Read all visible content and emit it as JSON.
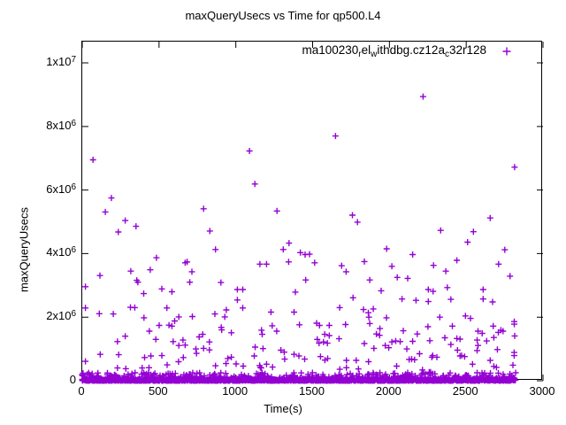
{
  "title": "maxQueryUsecs vs Time for qp500.L4",
  "legend": {
    "marker_glyph": "+",
    "parts": [
      {
        "text": "ma100230",
        "sub": false
      },
      {
        "text": "r",
        "sub": true
      },
      {
        "text": "el",
        "sub": false
      },
      {
        "text": "w",
        "sub": true
      },
      {
        "text": "ithdbg.cz12a",
        "sub": false
      },
      {
        "text": "c",
        "sub": true
      },
      {
        "text": "32r128",
        "sub": false
      }
    ]
  },
  "axes": {
    "x": {
      "label": "Time(s)",
      "ticks": [
        {
          "v": 0,
          "label": "0"
        },
        {
          "v": 500,
          "label": "500"
        },
        {
          "v": 1000,
          "label": "1000"
        },
        {
          "v": 1500,
          "label": "1500"
        },
        {
          "v": 2000,
          "label": "2000"
        },
        {
          "v": 2500,
          "label": "2500"
        },
        {
          "v": 3000,
          "label": "3000"
        }
      ]
    },
    "y": {
      "label": "maxQueryUsecs",
      "ticks": [
        {
          "v": 0,
          "base": "0",
          "exp": ""
        },
        {
          "v": 2000000,
          "base": "2x10",
          "exp": "6"
        },
        {
          "v": 4000000,
          "base": "4x10",
          "exp": "6"
        },
        {
          "v": 6000000,
          "base": "6x10",
          "exp": "6"
        },
        {
          "v": 8000000,
          "base": "8x10",
          "exp": "6"
        },
        {
          "v": 10000000,
          "base": "1x10",
          "exp": "7"
        }
      ]
    }
  },
  "chart_data": {
    "type": "scatter",
    "title": "maxQueryUsecs vs Time for qp500.L4",
    "xlabel": "Time(s)",
    "ylabel": "maxQueryUsecs",
    "xlim": [
      0,
      3000
    ],
    "ylim": [
      0,
      10670000
    ],
    "grid": false,
    "legend_position": "top-right-inside",
    "marker": {
      "shape": "plus",
      "color": "#9400D3",
      "size": 7,
      "stroke_width": 1.4
    },
    "series": [
      {
        "name": "ma100230_rel_withdbg.cz12a_c32r128",
        "points": [
          [
            70,
            6950000
          ],
          [
            190,
            5750000
          ],
          [
            1089,
            7230000
          ],
          [
            1124,
            6190000
          ],
          [
            1649,
            7700000
          ],
          [
            2219,
            8940000
          ],
          [
            2815,
            6720000
          ],
          [
            150,
            5310000
          ],
          [
            280,
            5040000
          ],
          [
            235,
            4680000
          ],
          [
            350,
            4860000
          ],
          [
            483,
            3870000
          ],
          [
            670,
            3710000
          ],
          [
            115,
            3310000
          ],
          [
            316,
            3450000
          ],
          [
            443,
            3490000
          ],
          [
            355,
            3160000
          ],
          [
            362,
            3100000
          ],
          [
            21,
            2960000
          ],
          [
            400,
            2740000
          ],
          [
            518,
            2890000
          ],
          [
            584,
            2800000
          ],
          [
            683,
            3740000
          ],
          [
            714,
            3430000
          ],
          [
            700,
            3100000
          ],
          [
            21,
            2290000
          ],
          [
            111,
            2110000
          ],
          [
            202,
            2100000
          ],
          [
            314,
            2310000
          ],
          [
            342,
            2300000
          ],
          [
            402,
            1980000
          ],
          [
            551,
            2290000
          ],
          [
            629,
            2010000
          ],
          [
            717,
            2020000
          ],
          [
            602,
            1880000
          ],
          [
            565,
            1750000
          ],
          [
            584,
            1720000
          ],
          [
            501,
            1740000
          ],
          [
            437,
            1560000
          ],
          [
            479,
            1300000
          ],
          [
            229,
            1230000
          ],
          [
            280,
            1400000
          ],
          [
            592,
            1230000
          ],
          [
            656,
            1280000
          ],
          [
            670,
            1120000
          ],
          [
            629,
            1110000
          ],
          [
            117,
            830000
          ],
          [
            237,
            820000
          ],
          [
            406,
            730000
          ],
          [
            447,
            780000
          ],
          [
            518,
            790000
          ],
          [
            553,
            500000
          ],
          [
            627,
            600000
          ],
          [
            658,
            730000
          ],
          [
            740,
            1000000
          ],
          [
            744,
            860000
          ],
          [
            229,
            400000
          ],
          [
            284,
            380000
          ],
          [
            344,
            250000
          ],
          [
            390,
            400000
          ],
          [
            435,
            410000
          ],
          [
            21,
            610000
          ],
          [
            464,
            190000
          ],
          [
            571,
            220000
          ],
          [
            790,
            5410000
          ],
          [
            1268,
            5340000
          ],
          [
            831,
            4710000
          ],
          [
            868,
            4130000
          ],
          [
            1346,
            4330000
          ],
          [
            1309,
            4130000
          ],
          [
            1344,
            3740000
          ],
          [
            1420,
            4030000
          ],
          [
            1451,
            3970000
          ],
          [
            1480,
            3980000
          ],
          [
            1513,
            3710000
          ],
          [
            1157,
            3670000
          ],
          [
            1200,
            3670000
          ],
          [
            1455,
            3170000
          ],
          [
            903,
            3090000
          ],
          [
            1010,
            2870000
          ],
          [
            1045,
            2870000
          ],
          [
            1010,
            2540000
          ],
          [
            1388,
            2790000
          ],
          [
            1045,
            2290000
          ],
          [
            938,
            2230000
          ],
          [
            864,
            2100000
          ],
          [
            928,
            2010000
          ],
          [
            1229,
            2160000
          ],
          [
            1379,
            2160000
          ],
          [
            905,
            1680000
          ],
          [
            908,
            1600000
          ],
          [
            971,
            1510000
          ],
          [
            1167,
            1590000
          ],
          [
            1172,
            1460000
          ],
          [
            1237,
            1730000
          ],
          [
            1266,
            1560000
          ],
          [
            1414,
            1760000
          ],
          [
            784,
            1460000
          ],
          [
            761,
            1380000
          ],
          [
            828,
            1220000
          ],
          [
            790,
            1020000
          ],
          [
            828,
            970000
          ],
          [
            1126,
            1060000
          ],
          [
            1177,
            1010000
          ],
          [
            1120,
            780000
          ],
          [
            1293,
            960000
          ],
          [
            1315,
            900000
          ],
          [
            1379,
            830000
          ],
          [
            1411,
            780000
          ],
          [
            1448,
            680000
          ],
          [
            1318,
            680000
          ],
          [
            948,
            700000
          ],
          [
            971,
            740000
          ],
          [
            936,
            540000
          ],
          [
            1002,
            530000
          ],
          [
            1048,
            460000
          ],
          [
            868,
            470000
          ],
          [
            1155,
            480000
          ],
          [
            1200,
            520000
          ],
          [
            1239,
            430000
          ],
          [
            1159,
            420000
          ],
          [
            1165,
            400000
          ],
          [
            1171,
            250000
          ],
          [
            1190,
            220000
          ],
          [
            1470,
            200000
          ],
          [
            1499,
            250000
          ],
          [
            1759,
            5210000
          ],
          [
            1792,
            4990000
          ],
          [
            1982,
            4150000
          ],
          [
            2151,
            3970000
          ],
          [
            1837,
            3750000
          ],
          [
            1689,
            3620000
          ],
          [
            1718,
            3430000
          ],
          [
            2016,
            3600000
          ],
          [
            2051,
            3250000
          ],
          [
            2119,
            3220000
          ],
          [
            1872,
            3170000
          ],
          [
            1946,
            2830000
          ],
          [
            2253,
            2870000
          ],
          [
            2284,
            2810000
          ],
          [
            1763,
            2610000
          ],
          [
            2082,
            2570000
          ],
          [
            2173,
            2530000
          ],
          [
            2253,
            2490000
          ],
          [
            1676,
            2300000
          ],
          [
            1831,
            2240000
          ],
          [
            1863,
            2140000
          ],
          [
            1895,
            2260000
          ],
          [
            1866,
            2000000
          ],
          [
            1872,
            1800000
          ],
          [
            1981,
            1980000
          ],
          [
            1714,
            1770000
          ],
          [
            1526,
            1810000
          ],
          [
            1545,
            1740000
          ],
          [
            1608,
            1740000
          ],
          [
            1579,
            1460000
          ],
          [
            1608,
            1420000
          ],
          [
            1571,
            1220000
          ],
          [
            1542,
            1180000
          ],
          [
            1530,
            1300000
          ],
          [
            1596,
            1180000
          ],
          [
            1551,
            760000
          ],
          [
            1598,
            700000
          ],
          [
            1580,
            650000
          ],
          [
            1938,
            1640000
          ],
          [
            1915,
            1470000
          ],
          [
            1936,
            1430000
          ],
          [
            2090,
            1570000
          ],
          [
            2181,
            1470000
          ],
          [
            2251,
            1700000
          ],
          [
            2263,
            1260000
          ],
          [
            1672,
            1320000
          ],
          [
            1837,
            1170000
          ],
          [
            1899,
            1020000
          ],
          [
            1973,
            1110000
          ],
          [
            1996,
            1040000
          ],
          [
            2016,
            1220000
          ],
          [
            2041,
            1250000
          ],
          [
            2070,
            1230000
          ],
          [
            2151,
            1240000
          ],
          [
            2113,
            1000000
          ],
          [
            2196,
            850000
          ],
          [
            2129,
            670000
          ],
          [
            2164,
            660000
          ],
          [
            2145,
            680000
          ],
          [
            1720,
            640000
          ],
          [
            1784,
            640000
          ],
          [
            1720,
            410000
          ],
          [
            1798,
            370000
          ],
          [
            1677,
            360000
          ],
          [
            1864,
            600000
          ],
          [
            1938,
            250000
          ],
          [
            2047,
            460000
          ],
          [
            2035,
            230000
          ],
          [
            2105,
            200000
          ],
          [
            2119,
            250000
          ],
          [
            2215,
            340000
          ],
          [
            2259,
            270000
          ],
          [
            2282,
            790000
          ],
          [
            2656,
            5120000
          ],
          [
            2334,
            4730000
          ],
          [
            2547,
            4690000
          ],
          [
            2509,
            4360000
          ],
          [
            2751,
            4120000
          ],
          [
            2439,
            3790000
          ],
          [
            2287,
            3630000
          ],
          [
            2367,
            3450000
          ],
          [
            2711,
            3670000
          ],
          [
            2785,
            3290000
          ],
          [
            2377,
            2930000
          ],
          [
            2610,
            2870000
          ],
          [
            2610,
            2570000
          ],
          [
            2672,
            2480000
          ],
          [
            2400,
            2560000
          ],
          [
            2328,
            2000000
          ],
          [
            2495,
            2040000
          ],
          [
            2528,
            1960000
          ],
          [
            2410,
            1720000
          ],
          [
            2813,
            1860000
          ],
          [
            2813,
            1780000
          ],
          [
            2676,
            1720000
          ],
          [
            2726,
            1590000
          ],
          [
            2740,
            1560000
          ],
          [
            2709,
            1520000
          ],
          [
            2577,
            1560000
          ],
          [
            2604,
            1490000
          ],
          [
            2361,
            1350000
          ],
          [
            2439,
            1330000
          ],
          [
            2460,
            1310000
          ],
          [
            2400,
            1140000
          ],
          [
            2571,
            1280000
          ],
          [
            2577,
            1110000
          ],
          [
            2571,
            950000
          ],
          [
            2633,
            1250000
          ],
          [
            2680,
            1360000
          ],
          [
            2816,
            1410000
          ],
          [
            2443,
            960000
          ],
          [
            2470,
            790000
          ],
          [
            2490,
            760000
          ],
          [
            2460,
            780000
          ],
          [
            2703,
            980000
          ],
          [
            2812,
            890000
          ],
          [
            2812,
            790000
          ],
          [
            2276,
            740000
          ],
          [
            2309,
            740000
          ],
          [
            2541,
            520000
          ],
          [
            2656,
            640000
          ],
          [
            2680,
            450000
          ],
          [
            2697,
            420000
          ],
          [
            2804,
            490000
          ],
          [
            2571,
            250000
          ],
          [
            2268,
            270000
          ]
        ]
      }
    ],
    "baseline_band": {
      "description": "dense band of samples hugging v=0 across the full time range",
      "t_min": 0,
      "t_max": 2820,
      "count": 800,
      "v_core_max": 45000,
      "v_spike_max": 250000,
      "seed": 7
    }
  }
}
